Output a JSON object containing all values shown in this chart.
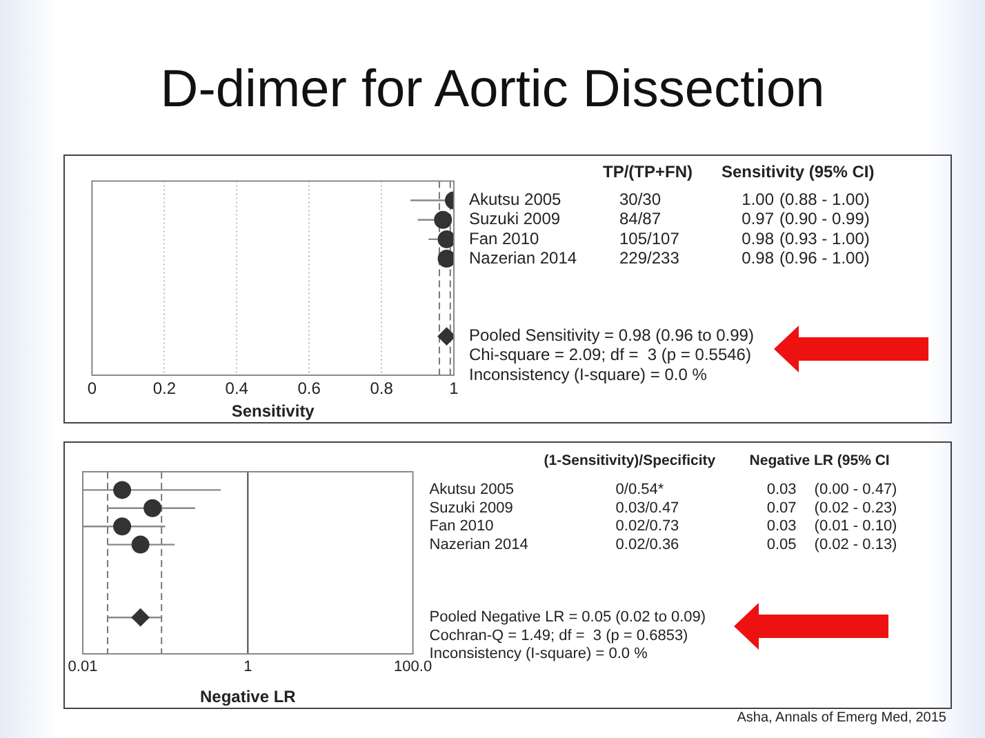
{
  "chart_data": [
    {
      "type": "scatter",
      "title": "D-dimer for Aortic Dissection",
      "xlabel": "Sensitivity",
      "orientation": "horizontal",
      "categories": [
        "Akutsu 2005",
        "Suzuki 2009",
        "Fan 2010",
        "Nazerian 2014",
        null,
        null,
        null,
        null
      ],
      "series": [
        {
          "color": "#333333",
          "marker": "circle",
          "values": [
            1.0,
            0.97,
            0.98,
            0.98,
            null,
            null,
            null,
            null
          ],
          "errors": [
            [
              0.88,
              1.0
            ],
            [
              0.9,
              0.99
            ],
            [
              0.93,
              1.0
            ],
            [
              0.96,
              1.0
            ],
            null,
            null,
            null,
            null
          ],
          "value_labels": [
            "1.00",
            "0.97",
            "0.98",
            "0.98",
            null,
            null,
            null,
            null
          ]
        },
        {
          "color": "#333333",
          "marker": "diamond",
          "values": [
            null,
            null,
            null,
            null,
            null,
            null,
            null,
            0.98
          ]
        }
      ],
      "xlim": [
        0,
        1
      ],
      "xticks": [
        0,
        0.2,
        0.4,
        0.6,
        0.8,
        1
      ],
      "grid": "x",
      "ref_lines": [
        {
          "axis": "x",
          "value": 0.96,
          "line_style": "dashed"
        },
        {
          "axis": "x",
          "value": 0.99,
          "line_style": "dashed"
        }
      ],
      "annotations": [
        "TP/(TP+FN)",
        "Sensitivity (95% CI)",
        "30/30",
        "(0.88 - 1.00)",
        "84/87",
        "(0.90 - 0.99)",
        "105/107",
        "(0.93 - 1.00)",
        "229/233",
        "(0.96 - 1.00)",
        "Pooled Sensitivity = 0.98 (0.96 to 0.99)",
        "Chi-square = 2.09; df =  3 (p = 0.5546)",
        "Inconsistency (I-square) = 0.0 %"
      ]
    },
    {
      "type": "scatter",
      "xlabel": "Negative LR",
      "orientation": "horizontal",
      "log": "x",
      "categories": [
        "Akutsu 2005",
        "Suzuki 2009",
        "Fan 2010",
        "Nazerian 2014",
        null,
        null,
        null,
        null
      ],
      "series": [
        {
          "color": "#333333",
          "marker": "circle",
          "values": [
            0.03,
            0.07,
            0.03,
            0.05,
            null,
            null,
            null,
            null
          ],
          "errors": [
            [
              0.01,
              0.47
            ],
            [
              0.02,
              0.23
            ],
            [
              0.01,
              0.1
            ],
            [
              0.02,
              0.13
            ],
            null,
            null,
            null,
            null
          ],
          "value_labels": [
            "0.03",
            "0.07",
            "0.03",
            "0.05",
            null,
            null,
            null,
            null
          ]
        },
        {
          "color": "#333333",
          "marker": "diamond",
          "values": [
            null,
            null,
            null,
            null,
            null,
            null,
            null,
            0.05
          ],
          "errors": [
            null,
            null,
            null,
            null,
            null,
            null,
            null,
            [
              0.02,
              0.09
            ]
          ]
        }
      ],
      "xlim": [
        0.01,
        100
      ],
      "xticks": [
        0.01,
        1,
        {
          "value": 100,
          "label": "100.0"
        }
      ],
      "ref_lines": [
        {
          "axis": "x",
          "value": 0.02,
          "line_style": "dashed"
        },
        {
          "axis": "x",
          "value": 0.09,
          "line_style": "dashed"
        },
        {
          "axis": "x",
          "value": 1,
          "line_style": "solid",
          "color": "#444444"
        }
      ],
      "annotations": [
        "(1-Sensitivity)/Specificity",
        "Negative LR (95% CI",
        "0/0.54*",
        "(0.00 - 0.47)",
        "0.03/0.47",
        "(0.02 - 0.23)",
        "0.02/0.73",
        "(0.01 - 0.10)",
        "0.02/0.36",
        "(0.02 - 0.13)",
        "Pooled Negative LR = 0.05 (0.02 to 0.09)",
        "Cochran-Q = 1.49; df =  3 (p = 0.6853)",
        "Inconsistency (I-square) = 0.0 %",
        "Asha, Annals of Emerg Med, 2015"
      ]
    }
  ]
}
